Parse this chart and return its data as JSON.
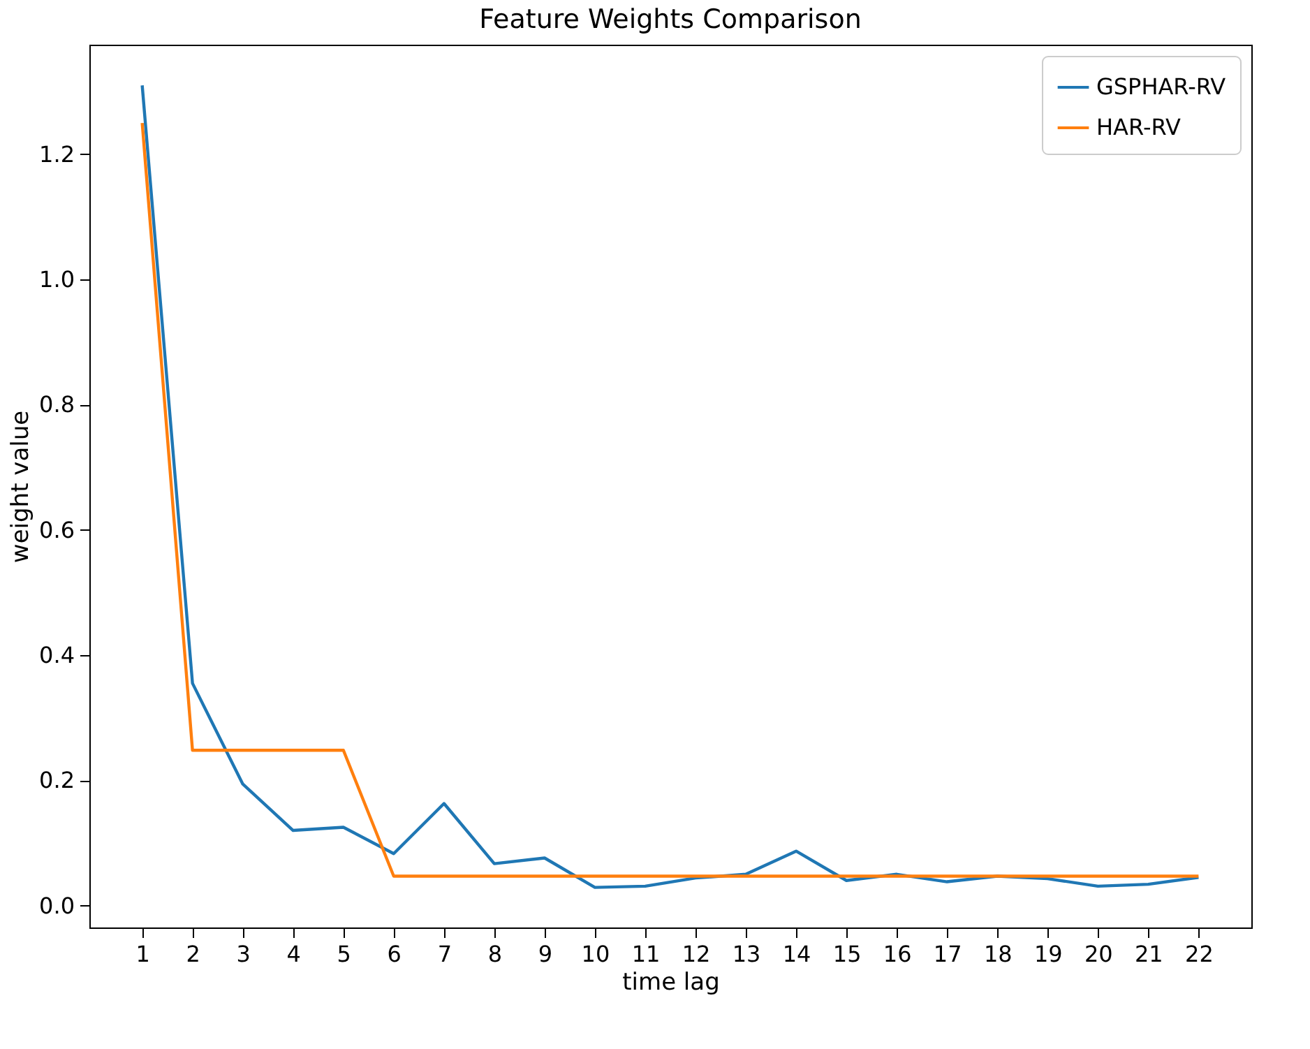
{
  "chart_data": {
    "type": "line",
    "title": "Feature Weights Comparison",
    "xlabel": "time lag",
    "ylabel": "weight value",
    "x": [
      1,
      2,
      3,
      4,
      5,
      6,
      7,
      8,
      9,
      10,
      11,
      12,
      13,
      14,
      15,
      16,
      17,
      18,
      19,
      20,
      21,
      22
    ],
    "series": [
      {
        "name": "GSPHAR-RV",
        "color": "#1f77b4",
        "values": [
          1.31,
          0.355,
          0.194,
          0.12,
          0.125,
          0.083,
          0.163,
          0.067,
          0.076,
          0.029,
          0.031,
          0.044,
          0.05,
          0.087,
          0.04,
          0.05,
          0.038,
          0.047,
          0.043,
          0.031,
          0.034,
          0.045
        ]
      },
      {
        "name": "HAR-RV",
        "color": "#ff7f0e",
        "values": [
          1.25,
          0.248,
          0.248,
          0.248,
          0.248,
          0.047,
          0.047,
          0.047,
          0.047,
          0.047,
          0.047,
          0.047,
          0.047,
          0.047,
          0.047,
          0.047,
          0.047,
          0.047,
          0.047,
          0.047,
          0.047,
          0.047
        ]
      }
    ],
    "xlim": [
      -0.05,
      23.05
    ],
    "xticks": [
      1,
      2,
      3,
      4,
      5,
      6,
      7,
      8,
      9,
      10,
      11,
      12,
      13,
      14,
      15,
      16,
      17,
      18,
      19,
      20,
      21,
      22
    ],
    "ylim": [
      -0.035,
      1.375
    ],
    "yticks": [
      {
        "value": 0,
        "label": "0.0"
      },
      0.2,
      0.4,
      0.6,
      0.8,
      {
        "value": 1,
        "label": "1.0"
      },
      1.2
    ],
    "grid": false,
    "legend": "top right",
    "marker": "none",
    "line_style": "solid"
  }
}
